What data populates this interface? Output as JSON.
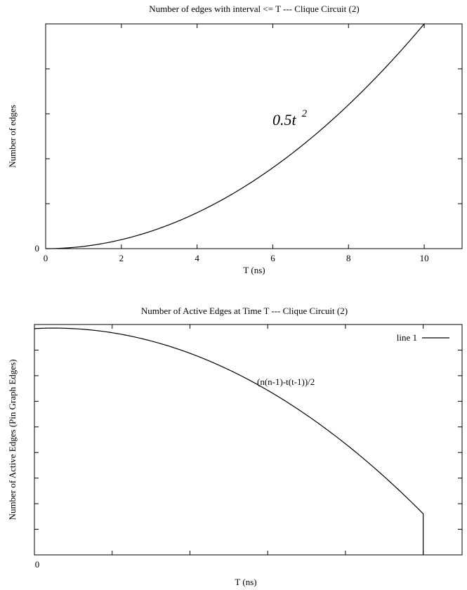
{
  "chart_data": [
    {
      "type": "line",
      "title": "Number of edges with interval <= T --- Clique Circuit (2)",
      "xlabel": "T (ns)",
      "ylabel": "Number of edges",
      "xlim": [
        0,
        11
      ],
      "ylim": [
        0,
        50
      ],
      "x_ticks": [
        "0",
        "2",
        "4",
        "6",
        "8",
        "10"
      ],
      "y_ticks": [
        "0"
      ],
      "annotation": {
        "text": "0.5t",
        "superscript": "2"
      },
      "series": [
        {
          "x": [
            0,
            1,
            2,
            3,
            4,
            5,
            6,
            7,
            8,
            9,
            10
          ],
          "y": [
            0,
            0.5,
            2,
            4.5,
            8,
            12.5,
            18,
            24.5,
            32,
            40.5,
            50
          ]
        }
      ],
      "grid": false
    },
    {
      "type": "line",
      "title": "Number of Active Edges at Time T --- Clique Circuit (2)",
      "xlabel": "T (ns)",
      "ylabel": "Number of Active Edges (Pin Graph Edges)",
      "xlim": [
        0,
        11
      ],
      "ylim": [
        0,
        56
      ],
      "x_ticks": [
        "0"
      ],
      "legend": {
        "position": "top-right",
        "entries": [
          "line 1"
        ]
      },
      "annotation": {
        "text": "(n(n-1)-t(t-1))/2"
      },
      "series": [
        {
          "name": "line 1",
          "x": [
            0,
            0.5,
            1,
            2,
            3,
            4,
            5,
            6,
            7,
            8,
            9,
            10
          ],
          "y": [
            55,
            55.125,
            55,
            54,
            52,
            49,
            45,
            40,
            34,
            27,
            19,
            10
          ]
        }
      ],
      "grid": false
    }
  ]
}
